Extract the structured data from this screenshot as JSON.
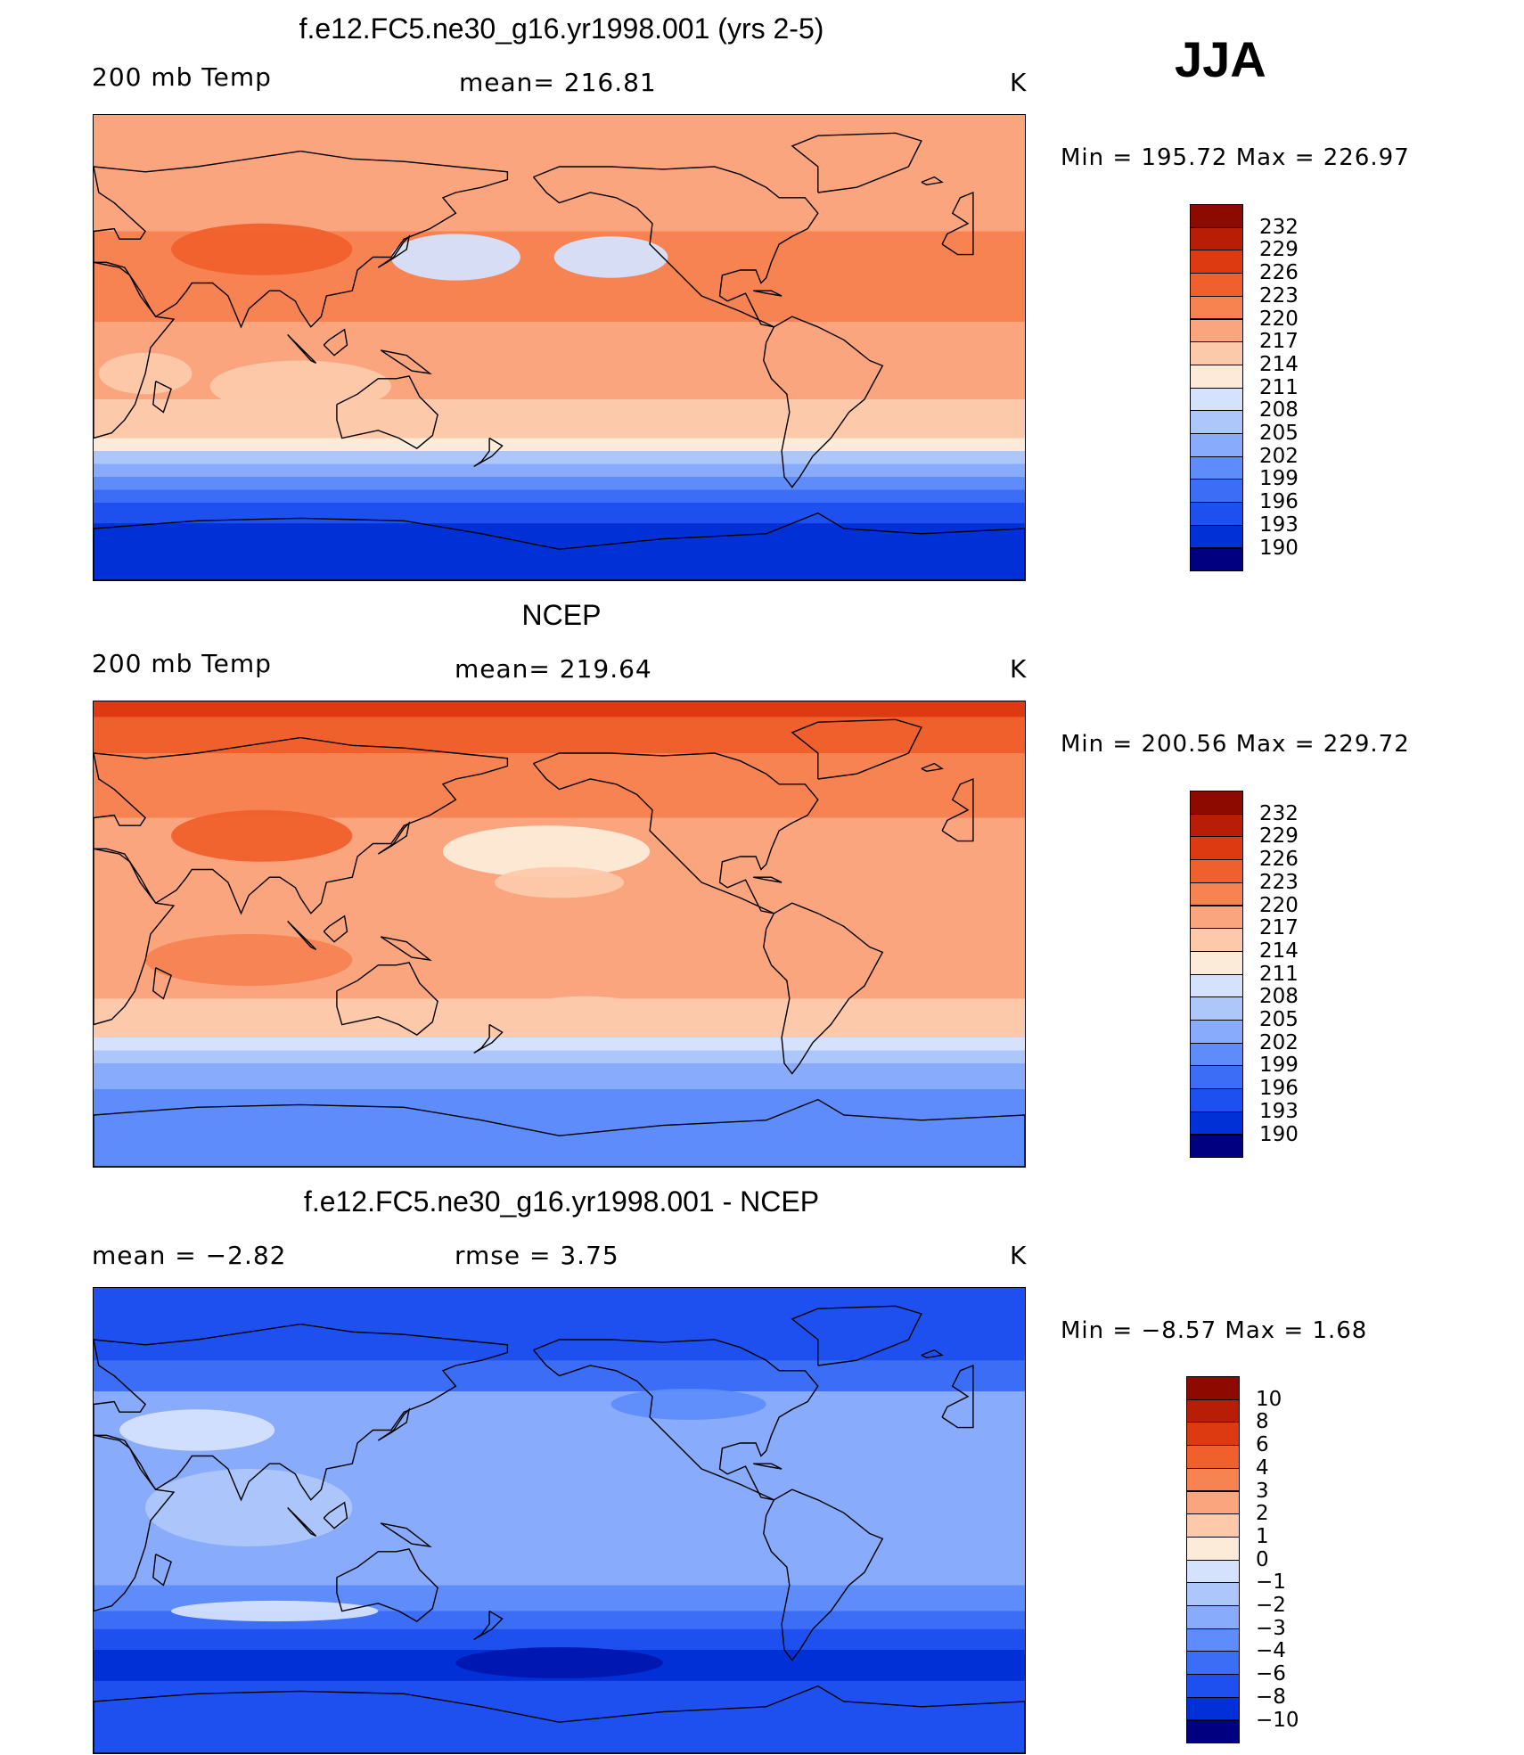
{
  "season": "JJA",
  "colors": {
    "abs": [
      "#fff3ff",
      "#000080",
      "#0016b0",
      "#0030d6",
      "#1e50ef",
      "#3b6df6",
      "#5e8dfb",
      "#88abfb",
      "#aec7fb",
      "#d4e2fd",
      "#fdebd9",
      "#fdc9ab",
      "#fba57f",
      "#f78252",
      "#f0602c",
      "#de3a11",
      "#b71e05",
      "#8c0a00"
    ],
    "diff": [
      "#000080",
      "#0016b0",
      "#0030d6",
      "#1e50ef",
      "#3b6df6",
      "#5e8dfb",
      "#88abfb",
      "#aec7fb",
      "#d4e2fd",
      "#fdebd9",
      "#fdc9ab",
      "#fba57f",
      "#f78252",
      "#f0602c",
      "#de3a11",
      "#b71e05",
      "#8c0a00"
    ]
  },
  "panels": [
    {
      "title": "f.e12.FC5.ne30_g16.yr1998.001 (yrs 2-5)",
      "left": "200 mb Temp",
      "center": "mean=  216.81",
      "right": "K",
      "minmax": "Min  =  195.72  Max  =  226.97",
      "levels": [
        "232",
        "229",
        "226",
        "223",
        "220",
        "217",
        "214",
        "211",
        "208",
        "205",
        "202",
        "199",
        "196",
        "193",
        "190"
      ],
      "bands": [
        {
          "lat_top": 90,
          "lat_bot": 72,
          "level": 220
        },
        {
          "lat_top": 72,
          "lat_bot": 45,
          "level": 221
        },
        {
          "lat_top": 45,
          "lat_bot": 10,
          "level": 223
        },
        {
          "lat_top": 10,
          "lat_bot": -20,
          "level": 221
        },
        {
          "lat_top": -20,
          "lat_bot": -35,
          "level": 218
        },
        {
          "lat_top": -35,
          "lat_bot": -40,
          "level": 214
        },
        {
          "lat_top": -40,
          "lat_bot": -45,
          "level": 210
        },
        {
          "lat_top": -45,
          "lat_bot": -50,
          "level": 206
        },
        {
          "lat_top": -50,
          "lat_bot": -55,
          "level": 203
        },
        {
          "lat_top": -55,
          "lat_bot": -60,
          "level": 200
        },
        {
          "lat_top": -60,
          "lat_bot": -68,
          "level": 197
        },
        {
          "lat_top": -68,
          "lat_bot": -90,
          "level": 195
        }
      ]
    },
    {
      "title": "NCEP",
      "left": "200 mb Temp",
      "center": "mean=  219.64",
      "right": "K",
      "minmax": "Min  =  200.56  Max  =  229.72",
      "levels": [
        "232",
        "229",
        "226",
        "223",
        "220",
        "217",
        "214",
        "211",
        "208",
        "205",
        "202",
        "199",
        "196",
        "193",
        "190"
      ],
      "bands": [
        {
          "lat_top": 90,
          "lat_bot": 84,
          "level": 229
        },
        {
          "lat_top": 84,
          "lat_bot": 70,
          "level": 226
        },
        {
          "lat_top": 70,
          "lat_bot": 45,
          "level": 224
        },
        {
          "lat_top": 45,
          "lat_bot": 15,
          "level": 222
        },
        {
          "lat_top": 15,
          "lat_bot": -25,
          "level": 221
        },
        {
          "lat_top": -25,
          "lat_bot": -40,
          "level": 218
        },
        {
          "lat_top": -40,
          "lat_bot": -45,
          "level": 212
        },
        {
          "lat_top": -45,
          "lat_bot": -50,
          "level": 209
        },
        {
          "lat_top": -50,
          "lat_bot": -60,
          "level": 206
        },
        {
          "lat_top": -60,
          "lat_bot": -90,
          "level": 203
        }
      ]
    },
    {
      "title": "f.e12.FC5.ne30_g16.yr1998.001 - NCEP",
      "left": "mean  =    −2.82",
      "center": "rmse  =      3.75",
      "right": "K",
      "minmax": "Min  =    −8.57  Max  =      1.68",
      "levels": [
        "10",
        "8",
        "6",
        "4",
        "3",
        "2",
        "1",
        "0",
        "−1",
        "−2",
        "−3",
        "−4",
        "−6",
        "−8",
        "−10"
      ],
      "bands": [
        {
          "lat_top": 90,
          "lat_bot": 75,
          "level": -6
        },
        {
          "lat_top": 75,
          "lat_bot": 62,
          "level": -4.5
        },
        {
          "lat_top": 62,
          "lat_bot": 50,
          "level": -3.5
        },
        {
          "lat_top": 50,
          "lat_bot": 35,
          "level": -1.5
        },
        {
          "lat_top": 35,
          "lat_bot": -25,
          "level": -1.5
        },
        {
          "lat_top": -25,
          "lat_bot": -35,
          "level": -2.5
        },
        {
          "lat_top": -35,
          "lat_bot": -42,
          "level": -3.5
        },
        {
          "lat_top": -42,
          "lat_bot": -50,
          "level": -5
        },
        {
          "lat_top": -50,
          "lat_bot": -62,
          "level": -7
        },
        {
          "lat_top": -62,
          "lat_bot": -90,
          "level": -5
        }
      ]
    }
  ]
}
